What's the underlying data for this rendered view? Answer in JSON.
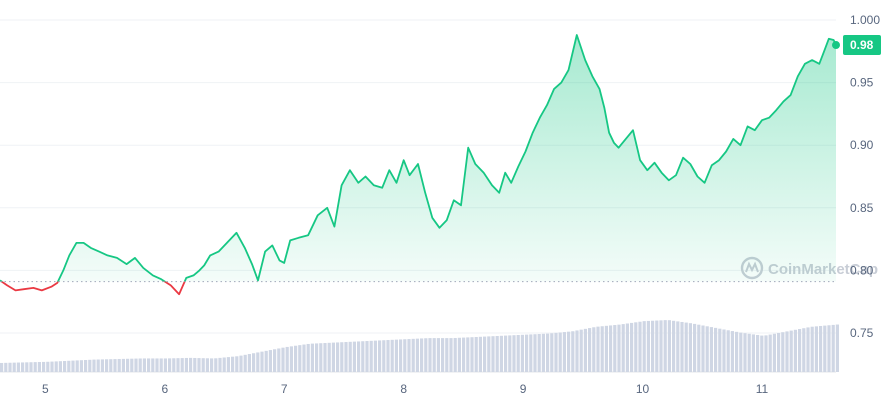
{
  "chart_data": {
    "type": "line",
    "title": "",
    "xlabel": "",
    "ylabel": "",
    "x_ticks": [
      "5",
      "6",
      "7",
      "8",
      "9",
      "10",
      "11"
    ],
    "y_ticks": [
      "0.75",
      "0.80",
      "0.85",
      "0.90",
      "0.95",
      "1.000"
    ],
    "ylim": [
      0.72,
      1.01
    ],
    "xlim": [
      4.62,
      11.62
    ],
    "reference_value": 0.791,
    "last_value_label": "0.98",
    "watermark": "CoinMarketCap",
    "grid": "horizontal",
    "colors": {
      "up_line": "#16c784",
      "down_line": "#ea3943",
      "fill_top": "#16c784",
      "volume": "#cfd6e4",
      "grid": "#eff2f5",
      "reference": "#a1a7bb",
      "last_label_bg": "#16c784"
    },
    "series": [
      {
        "x": [
          4.62,
          4.68,
          4.75,
          4.82,
          4.9,
          4.97,
          5.05,
          5.1,
          5.15,
          5.2,
          5.26,
          5.32,
          5.38,
          5.45,
          5.52,
          5.6,
          5.68,
          5.75,
          5.82,
          5.9,
          5.97,
          6.05,
          6.12,
          6.18,
          6.24,
          6.29,
          6.33,
          6.38,
          6.45,
          6.52,
          6.6,
          6.67,
          6.73,
          6.78,
          6.84,
          6.9,
          6.96,
          7.0,
          7.05,
          7.12,
          7.2,
          7.28,
          7.36,
          7.42,
          7.48,
          7.55,
          7.62,
          7.68,
          7.75,
          7.82,
          7.88,
          7.94,
          8.0,
          8.05,
          8.12,
          8.18,
          8.24,
          8.3,
          8.36,
          8.42,
          8.48,
          8.54,
          8.6,
          8.67,
          8.74,
          8.8,
          8.85,
          8.9,
          8.96,
          9.02,
          9.08,
          9.14,
          9.2,
          9.26,
          9.32,
          9.38,
          9.45,
          9.52,
          9.58,
          9.64,
          9.68,
          9.72,
          9.76,
          9.8,
          9.86,
          9.92,
          9.98,
          10.04,
          10.1,
          10.16,
          10.22,
          10.28,
          10.34,
          10.4,
          10.46,
          10.52,
          10.58,
          10.64,
          10.7,
          10.76,
          10.82,
          10.88,
          10.94,
          11.0,
          11.06,
          11.12,
          11.18,
          11.24,
          11.3,
          11.36,
          11.42,
          11.48,
          11.52,
          11.56,
          11.6,
          11.62
        ],
        "y": [
          0.792,
          0.788,
          0.784,
          0.785,
          0.786,
          0.784,
          0.787,
          0.79,
          0.8,
          0.812,
          0.822,
          0.822,
          0.818,
          0.815,
          0.812,
          0.81,
          0.805,
          0.81,
          0.802,
          0.796,
          0.793,
          0.788,
          0.781,
          0.794,
          0.796,
          0.8,
          0.804,
          0.812,
          0.815,
          0.822,
          0.83,
          0.818,
          0.805,
          0.792,
          0.815,
          0.82,
          0.808,
          0.806,
          0.824,
          0.826,
          0.828,
          0.844,
          0.85,
          0.835,
          0.868,
          0.88,
          0.87,
          0.875,
          0.868,
          0.866,
          0.88,
          0.87,
          0.888,
          0.876,
          0.885,
          0.862,
          0.842,
          0.834,
          0.84,
          0.856,
          0.852,
          0.898,
          0.885,
          0.878,
          0.868,
          0.862,
          0.878,
          0.87,
          0.883,
          0.895,
          0.91,
          0.922,
          0.932,
          0.945,
          0.95,
          0.96,
          0.988,
          0.968,
          0.955,
          0.945,
          0.93,
          0.91,
          0.902,
          0.898,
          0.905,
          0.912,
          0.888,
          0.88,
          0.886,
          0.878,
          0.872,
          0.876,
          0.89,
          0.885,
          0.875,
          0.87,
          0.884,
          0.888,
          0.895,
          0.905,
          0.9,
          0.915,
          0.912,
          0.92,
          0.922,
          0.928,
          0.935,
          0.94,
          0.955,
          0.965,
          0.968,
          0.965,
          0.975,
          0.985,
          0.984,
          0.98
        ]
      }
    ],
    "volume": {
      "x": [
        4.62,
        5.0,
        5.2,
        5.4,
        5.6,
        5.8,
        6.0,
        6.2,
        6.4,
        6.6,
        6.8,
        7.0,
        7.2,
        7.4,
        7.6,
        7.8,
        8.0,
        8.2,
        8.4,
        8.6,
        8.8,
        9.0,
        9.2,
        9.4,
        9.6,
        9.8,
        10.0,
        10.2,
        10.4,
        10.6,
        10.8,
        11.0,
        11.2,
        11.4,
        11.62
      ],
      "values": [
        0.8,
        0.9,
        1.0,
        1.1,
        1.15,
        1.2,
        1.2,
        1.25,
        1.2,
        1.4,
        1.8,
        2.2,
        2.5,
        2.6,
        2.7,
        2.8,
        2.9,
        3.0,
        3.0,
        3.1,
        3.2,
        3.3,
        3.4,
        3.6,
        4.0,
        4.2,
        4.5,
        4.6,
        4.3,
        3.9,
        3.5,
        3.2,
        3.6,
        4.0,
        4.2
      ]
    }
  }
}
